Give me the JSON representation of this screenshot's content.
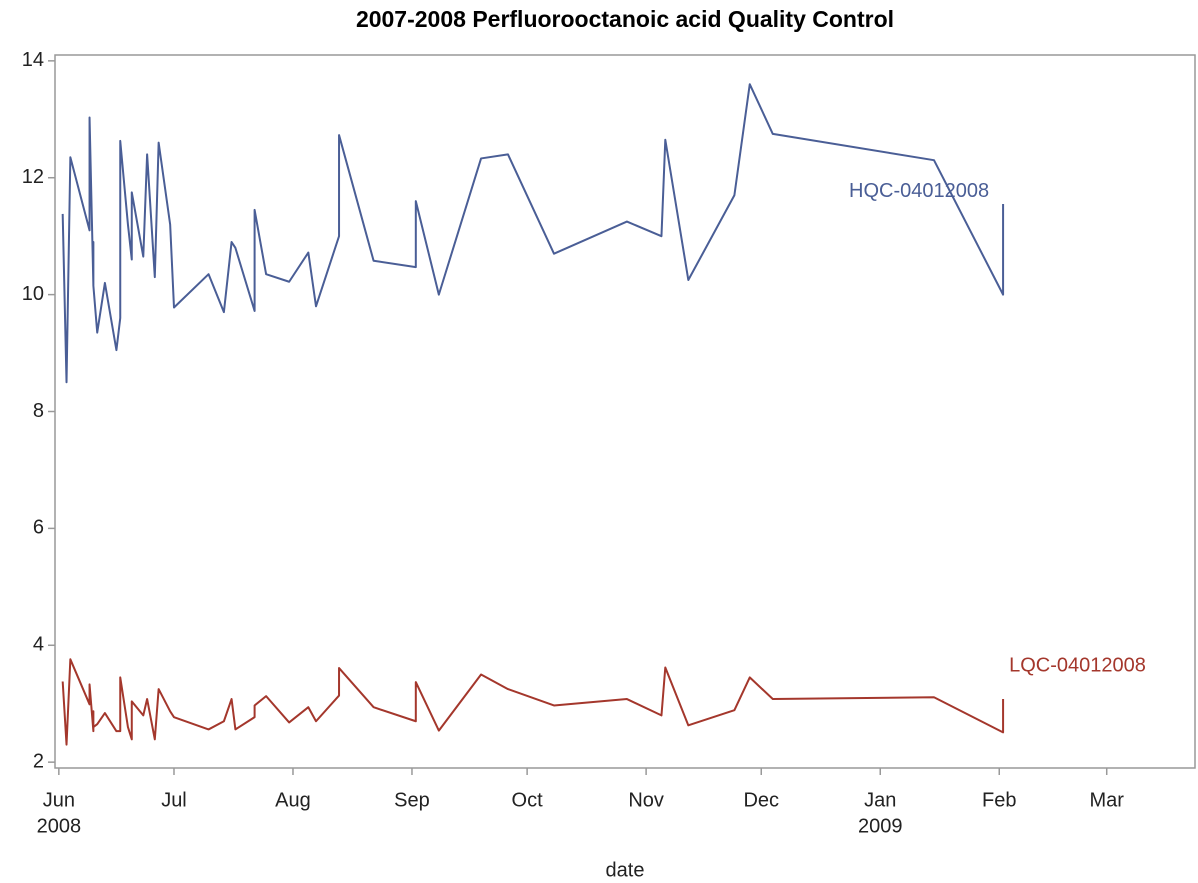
{
  "chart_data": {
    "type": "line",
    "title": "2007-2008 Perfluorooctanoic acid Quality Control",
    "x_label": "date",
    "x": [
      "2008-06-02",
      "2008-06-03",
      "2008-06-04",
      "2008-06-09",
      "2008-06-09",
      "2008-06-10",
      "2008-06-10",
      "2008-06-10",
      "2008-06-11",
      "2008-06-13",
      "2008-06-16",
      "2008-06-17",
      "2008-06-17",
      "2008-06-19",
      "2008-06-20",
      "2008-06-20",
      "2008-06-23",
      "2008-06-24",
      "2008-06-26",
      "2008-06-27",
      "2008-06-30",
      "2008-07-01",
      "2008-07-10",
      "2008-07-14",
      "2008-07-16",
      "2008-07-17",
      "2008-07-22",
      "2008-07-22",
      "2008-07-25",
      "2008-07-31",
      "2008-08-05",
      "2008-08-07",
      "2008-08-13",
      "2008-08-13",
      "2008-08-22",
      "2008-09-02",
      "2008-09-02",
      "2008-09-08",
      "2008-09-19",
      "2008-09-26",
      "2008-10-08",
      "2008-10-27",
      "2008-11-05",
      "2008-11-06",
      "2008-11-12",
      "2008-11-24",
      "2008-11-28",
      "2008-12-04",
      "2009-01-15",
      "2009-02-02",
      "2009-02-02"
    ],
    "series": [
      {
        "name": "HQC-04012008",
        "color": "#4a5e96",
        "values": [
          11.38,
          8.5,
          12.35,
          11.1,
          13.03,
          10.15,
          10.9,
          10.15,
          9.35,
          10.2,
          9.05,
          9.6,
          12.63,
          11.2,
          10.6,
          11.75,
          10.65,
          12.4,
          10.3,
          12.6,
          11.2,
          9.78,
          10.35,
          9.7,
          10.9,
          10.8,
          9.72,
          11.45,
          10.35,
          10.22,
          10.72,
          9.8,
          11.0,
          12.73,
          10.58,
          10.47,
          11.6,
          10.0,
          12.33,
          12.4,
          10.7,
          11.25,
          11.0,
          12.65,
          10.25,
          11.7,
          13.6,
          12.75,
          12.3,
          10.0,
          11.55
        ]
      },
      {
        "name": "LQC-04012008",
        "color": "#a4372c",
        "values": [
          3.38,
          2.3,
          3.76,
          2.99,
          3.33,
          2.53,
          2.87,
          2.6,
          2.65,
          2.84,
          2.53,
          2.53,
          3.45,
          2.6,
          2.39,
          3.04,
          2.8,
          3.08,
          2.39,
          3.25,
          2.87,
          2.77,
          2.56,
          2.7,
          3.08,
          2.56,
          2.77,
          2.97,
          3.13,
          2.68,
          2.94,
          2.7,
          3.14,
          3.61,
          2.94,
          2.7,
          3.37,
          2.54,
          3.5,
          3.25,
          2.97,
          3.08,
          2.8,
          3.62,
          2.63,
          2.89,
          3.45,
          3.08,
          3.11,
          2.51,
          3.08
        ]
      }
    ],
    "xlim": [
      "2008-05-31",
      "2009-03-24"
    ],
    "xticks": [
      {
        "value": "2008-06-01",
        "label": "Jun"
      },
      {
        "value": "2008-07-01",
        "label": "Jul"
      },
      {
        "value": "2008-08-01",
        "label": "Aug"
      },
      {
        "value": "2008-09-01",
        "label": "Sep"
      },
      {
        "value": "2008-10-01",
        "label": "Oct"
      },
      {
        "value": "2008-11-01",
        "label": "Nov"
      },
      {
        "value": "2008-12-01",
        "label": "Dec"
      },
      {
        "value": "2009-01-01",
        "label": "Jan"
      },
      {
        "value": "2009-02-01",
        "label": "Feb"
      },
      {
        "value": "2009-03-01",
        "label": "Mar"
      }
    ],
    "xtick_years": [
      {
        "value": "2008-06-01",
        "label": "2008"
      },
      {
        "value": "2009-01-01",
        "label": "2009"
      }
    ],
    "ylim": [
      1.9,
      14.1
    ],
    "yticks": [
      2,
      4,
      6,
      8,
      10,
      12,
      14
    ],
    "grid": false
  }
}
